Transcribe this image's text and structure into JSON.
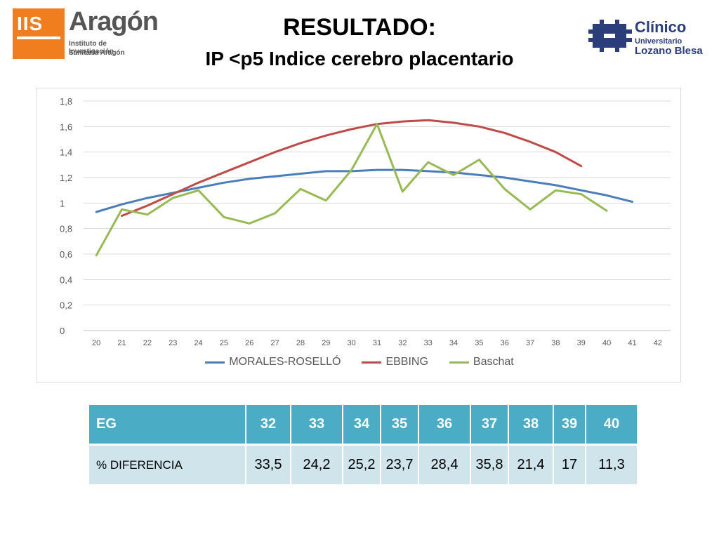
{
  "logos": {
    "iis": {
      "mark": "IIS",
      "name": "Aragón",
      "line1": "Instituto de Investigación",
      "line2": "Sanitaria Aragón",
      "color": "#f07d1e"
    },
    "clinico": {
      "name": "Clínico",
      "line1": "Universitario",
      "line2": "Lozano Blesa",
      "icon": "cross-icon",
      "color": "#2c3e7a"
    }
  },
  "header": {
    "title": "RESULTADO:",
    "subtitle": "IP <p5 Indice cerebro placentario"
  },
  "chart_data": {
    "type": "line",
    "x": [
      20,
      21,
      22,
      23,
      24,
      25,
      26,
      27,
      28,
      29,
      30,
      31,
      32,
      33,
      34,
      35,
      36,
      37,
      38,
      39,
      40,
      41,
      42
    ],
    "ylim": [
      0,
      1.8
    ],
    "yticks": [
      "0",
      "0,2",
      "0,4",
      "0,6",
      "0,8",
      "1",
      "1,2",
      "1,4",
      "1,6",
      "1,8"
    ],
    "grid": true,
    "legend_position": "bottom",
    "series": [
      {
        "name": "MORALES-ROSELLÓ",
        "color": "#4a7ebb",
        "values": [
          0.93,
          0.99,
          1.04,
          1.08,
          1.12,
          1.16,
          1.19,
          1.21,
          1.23,
          1.25,
          1.25,
          1.26,
          1.26,
          1.25,
          1.24,
          1.22,
          1.2,
          1.17,
          1.14,
          1.1,
          1.06,
          1.01,
          null
        ]
      },
      {
        "name": "EBBING",
        "color": "#be4b48",
        "values": [
          null,
          0.9,
          0.98,
          1.07,
          1.16,
          1.24,
          1.32,
          1.4,
          1.47,
          1.53,
          1.58,
          1.62,
          1.64,
          1.65,
          1.63,
          1.6,
          1.55,
          1.48,
          1.4,
          1.29,
          null,
          null,
          null
        ]
      },
      {
        "name": "Baschat",
        "color": "#98b954",
        "values": [
          0.59,
          0.95,
          0.91,
          1.04,
          1.1,
          0.89,
          0.84,
          0.92,
          1.11,
          1.02,
          1.26,
          1.62,
          1.09,
          1.32,
          1.22,
          1.34,
          1.11,
          0.95,
          1.1,
          1.07,
          0.94,
          null,
          null
        ]
      }
    ]
  },
  "table": {
    "header": [
      "EG",
      "32",
      "33",
      "34",
      "35",
      "36",
      "37",
      "38",
      "39",
      "40"
    ],
    "row": [
      "% DIFERENCIA",
      "33,5",
      "24,2",
      "25,2",
      "23,7",
      "28,4",
      "35,8",
      "21,4",
      "17",
      "11,3"
    ]
  }
}
